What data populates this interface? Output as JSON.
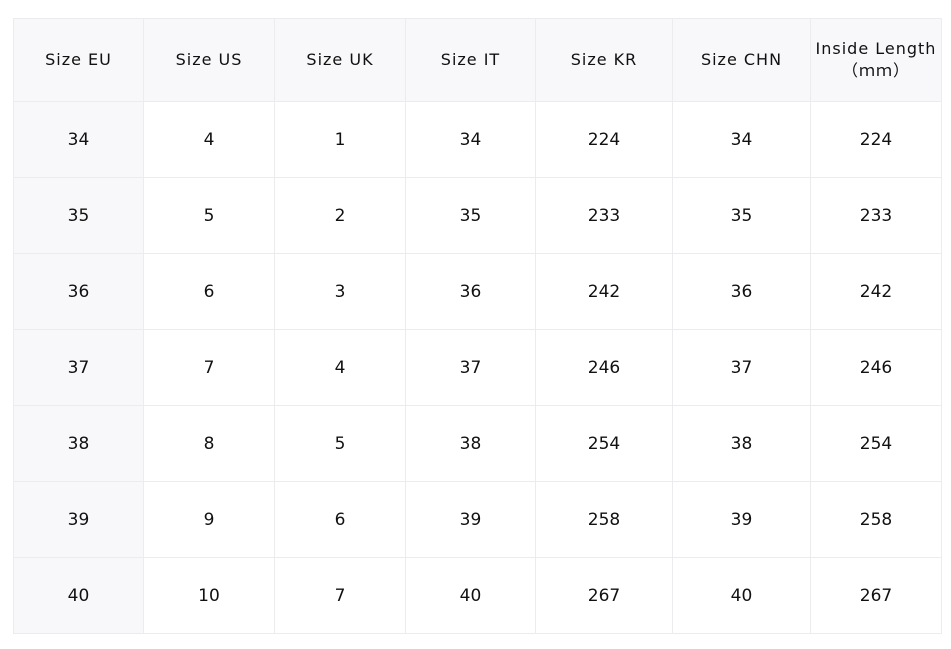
{
  "headers": [
    "Size EU",
    "Size US",
    "Size UK",
    "Size IT",
    "Size KR",
    "Size CHN",
    "Inside Length\n（ｍｍ）"
  ],
  "rows": [
    [
      "34",
      "4",
      "1",
      "34",
      "224",
      "34",
      "224"
    ],
    [
      "35",
      "5",
      "2",
      "35",
      "233",
      "35",
      "233"
    ],
    [
      "36",
      "6",
      "3",
      "36",
      "242",
      "36",
      "242"
    ],
    [
      "37",
      "7",
      "4",
      "37",
      "246",
      "37",
      "246"
    ],
    [
      "38",
      "8",
      "5",
      "38",
      "254",
      "38",
      "254"
    ],
    [
      "39",
      "9",
      "6",
      "39",
      "258",
      "39",
      "258"
    ],
    [
      "40",
      "10",
      "7",
      "40",
      "267",
      "40",
      "267"
    ]
  ]
}
